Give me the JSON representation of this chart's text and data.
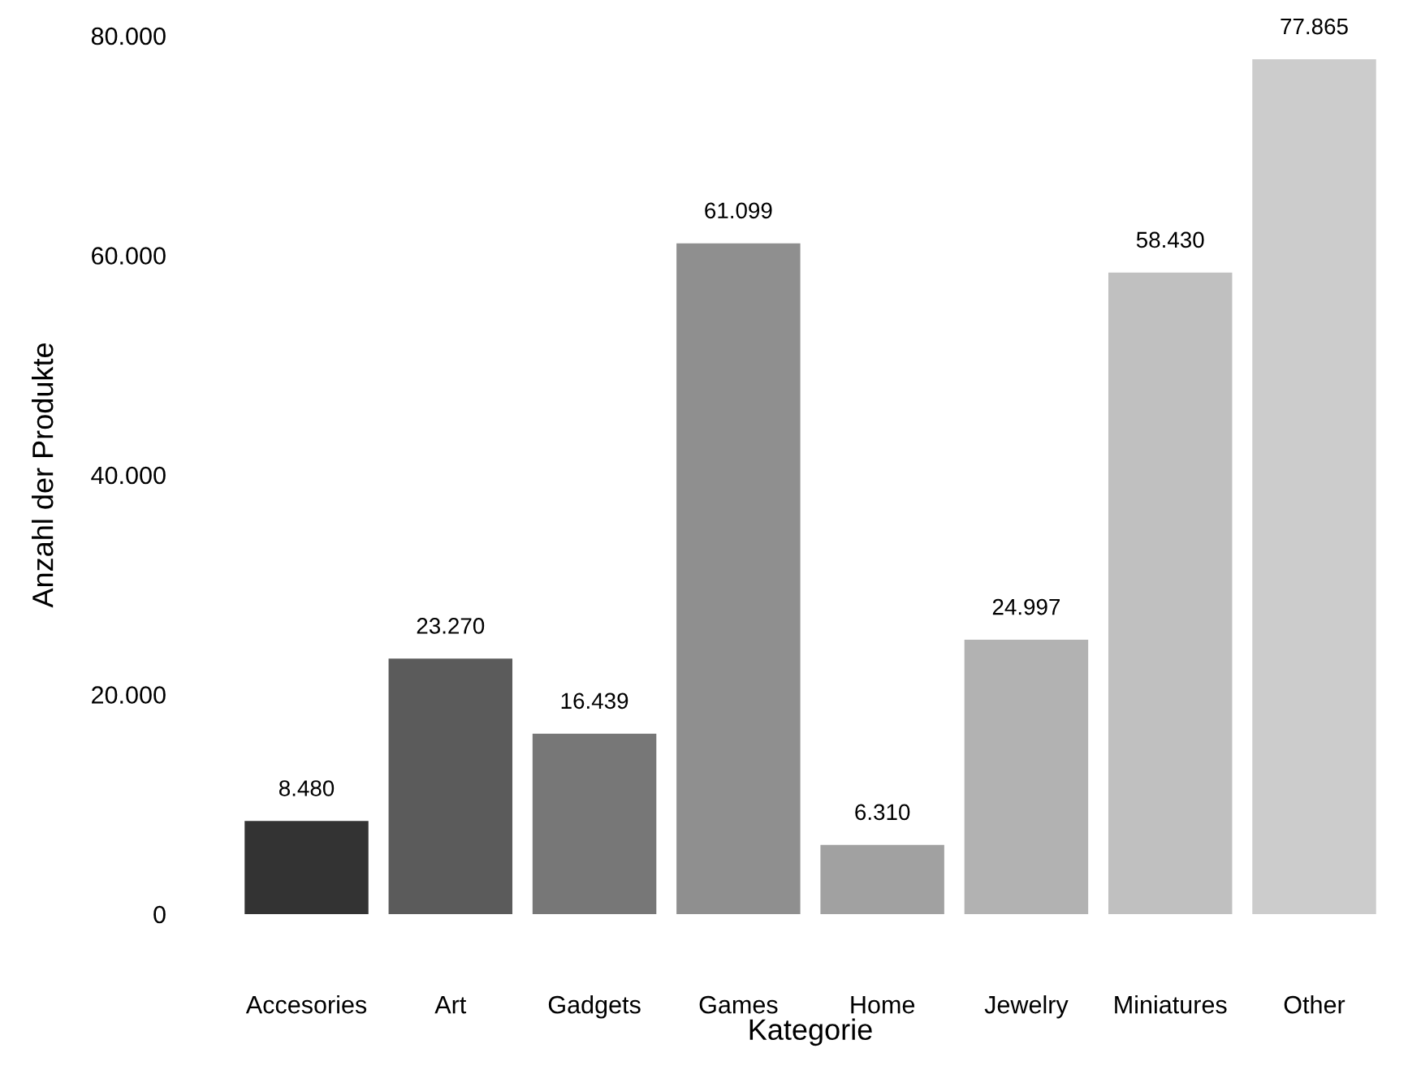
{
  "chart_data": {
    "type": "bar",
    "xlabel": "Kategorie",
    "ylabel": "Anzahl der Produkte",
    "categories": [
      "Accesories",
      "Art",
      "Gadgets",
      "Games",
      "Home",
      "Jewelry",
      "Miniatures",
      "Other"
    ],
    "values": [
      8480,
      23270,
      16439,
      61099,
      6310,
      24997,
      58430,
      77865
    ],
    "colors": [
      "#333333",
      "#5b5b5b",
      "#777777",
      "#8f8f8f",
      "#a1a1a1",
      "#b2b2b2",
      "#c0c0c0",
      "#cccccc"
    ],
    "value_labels": [
      "8.480",
      "23.270",
      "16.439",
      "61.099",
      "6.310",
      "24.997",
      "58.430",
      "77.865"
    ],
    "ylim": [
      0,
      80000
    ],
    "yticks": [
      {
        "value": 0,
        "label": "0"
      },
      {
        "value": 20000,
        "label": "20.000"
      },
      {
        "value": 40000,
        "label": "40.000"
      },
      {
        "value": 60000,
        "label": "60.000"
      },
      {
        "value": 80000,
        "label": "80.000"
      }
    ],
    "grid": false
  }
}
